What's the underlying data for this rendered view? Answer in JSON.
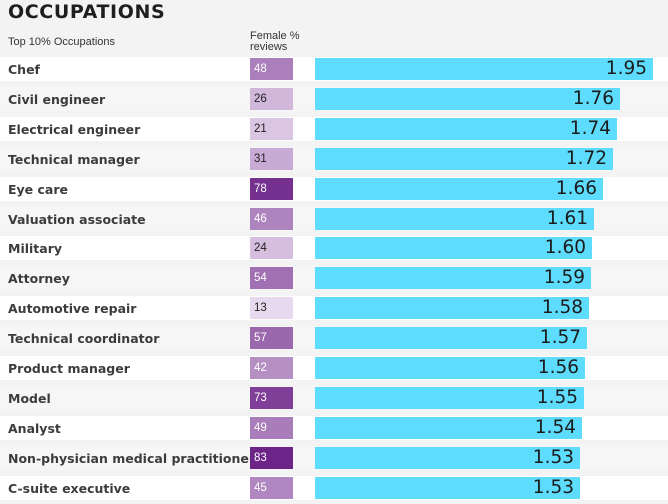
{
  "header": {
    "title": "OCCUPATIONS",
    "subtitle": "Top 10% Occupations",
    "pct_header": "Female % reviews"
  },
  "colors": {
    "bar": "#5ddcfd",
    "pct_scale_low": "#ede2f2",
    "pct_scale_high": "#6a1f86"
  },
  "chart_data": {
    "type": "bar",
    "orientation": "horizontal",
    "title": "OCCUPATIONS",
    "subtitle": "Top 10% Occupations",
    "categories": [
      "Chef",
      "Civil engineer",
      "Electrical engineer",
      "Technical manager",
      "Eye care",
      "Valuation associate",
      "Military",
      "Attorney",
      "Automotive repair",
      "Technical coordinator",
      "Product manager",
      "Model",
      "Analyst",
      "Non-physician medical practitioner",
      "C-suite executive"
    ],
    "series": [
      {
        "values": [
          1.95,
          1.76,
          1.74,
          1.72,
          1.66,
          1.61,
          1.6,
          1.59,
          1.58,
          1.57,
          1.56,
          1.55,
          1.54,
          1.53,
          1.53
        ],
        "labels": [
          "1.95",
          "1.76",
          "1.74",
          "1.72",
          "1.66",
          "1.61",
          "1.60",
          "1.59",
          "1.58",
          "1.57",
          "1.56",
          "1.55",
          "1.54",
          "1.53",
          "1.53"
        ]
      },
      {
        "name": "Female % reviews",
        "values": [
          48,
          26,
          21,
          31,
          78,
          46,
          24,
          54,
          13,
          57,
          42,
          73,
          49,
          83,
          45
        ]
      }
    ],
    "xlim": [
      0,
      1.95
    ],
    "grid": false,
    "legend": "none"
  }
}
